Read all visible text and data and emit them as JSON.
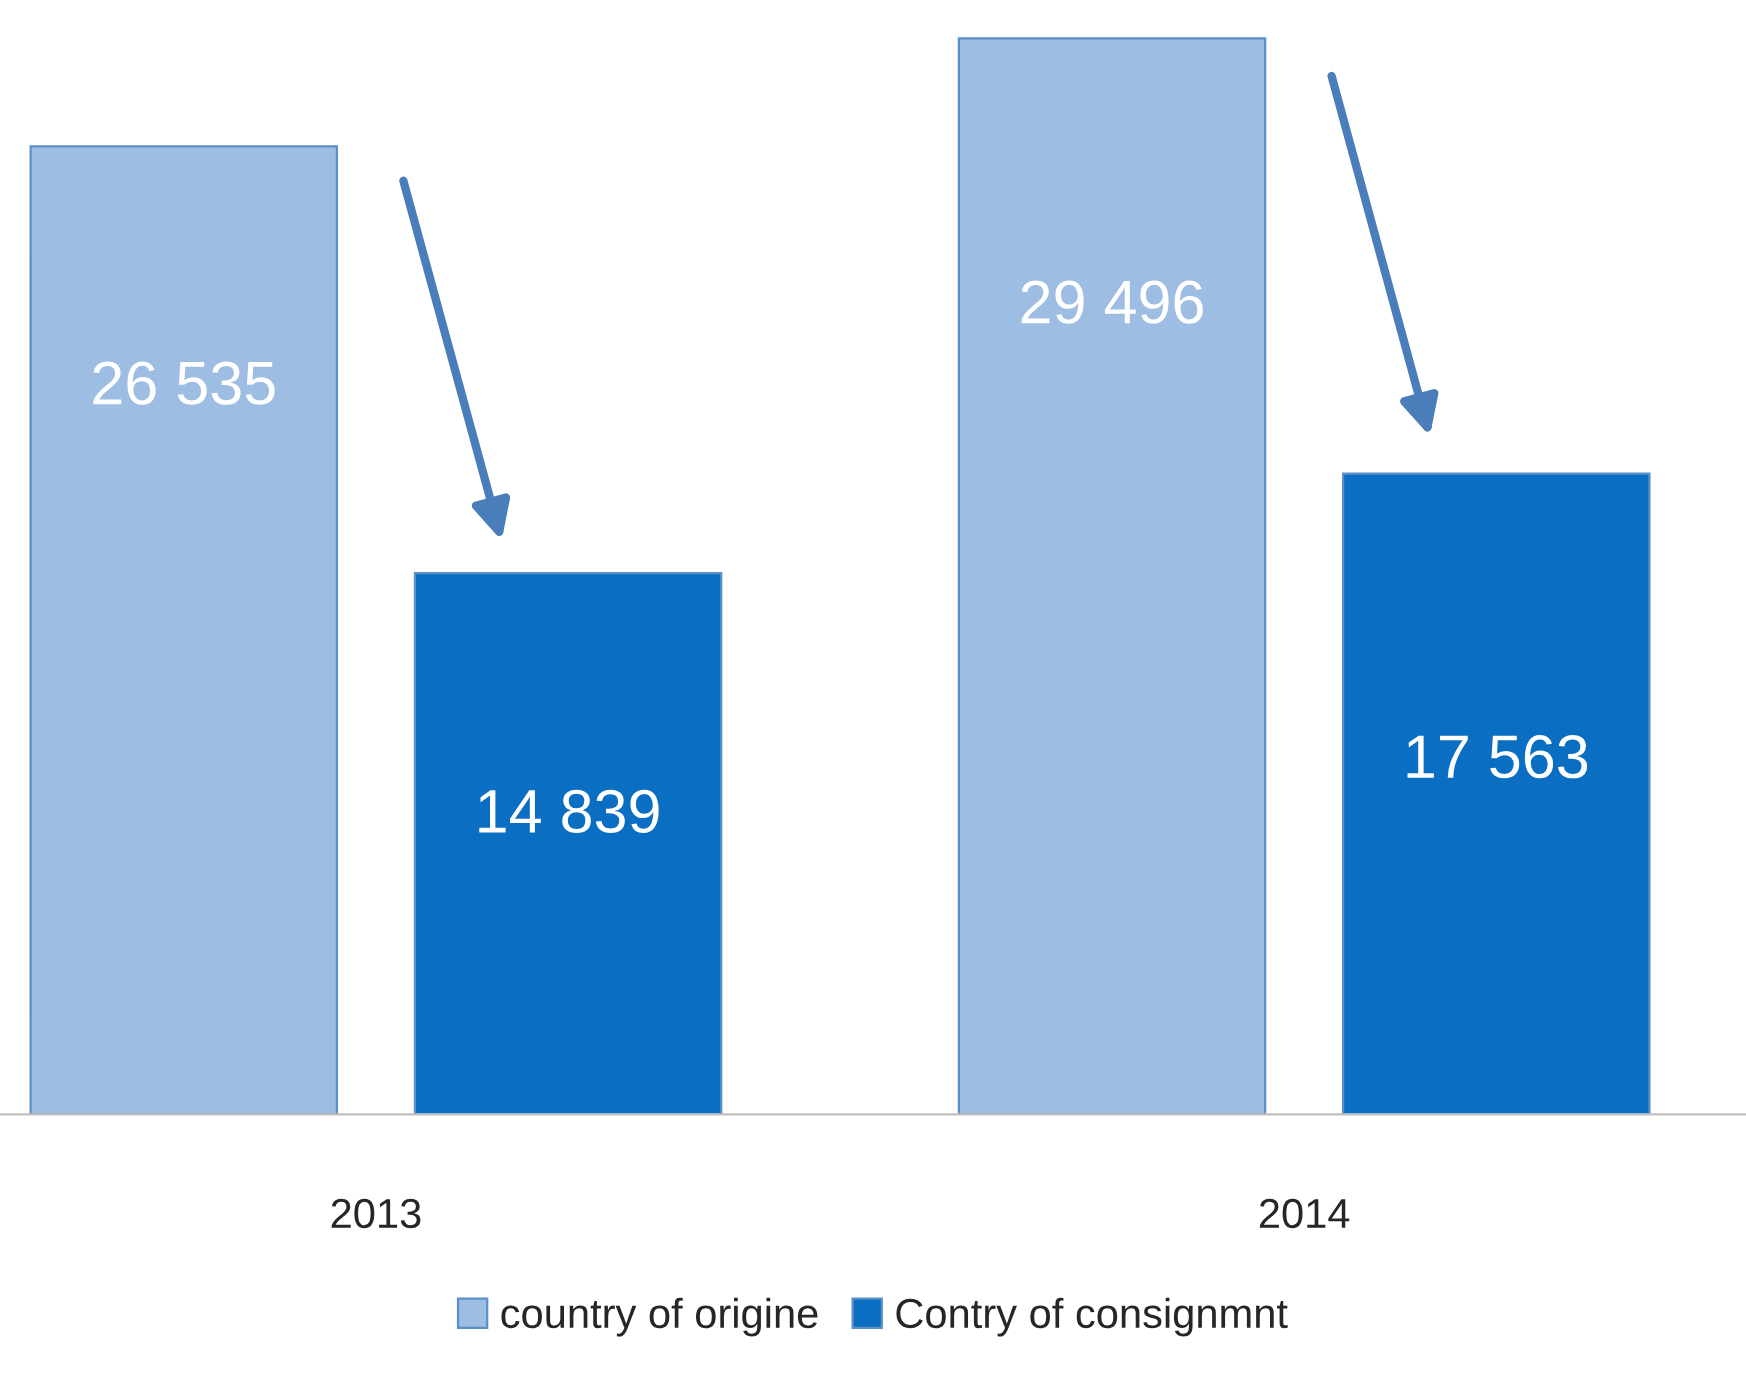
{
  "chart_data": {
    "type": "bar",
    "categories": [
      "2013",
      "2014"
    ],
    "series": [
      {
        "name": "country of origine",
        "color": "#9dbde3",
        "values": [
          26535,
          29496
        ],
        "value_labels": [
          "26 535",
          "29 496"
        ]
      },
      {
        "name": "Contry of consignmnt",
        "color": "#0a6fc2",
        "values": [
          14839,
          17563
        ],
        "value_labels": [
          "14 839",
          "17 563"
        ]
      }
    ],
    "legend": "bottom",
    "grid": false
  }
}
